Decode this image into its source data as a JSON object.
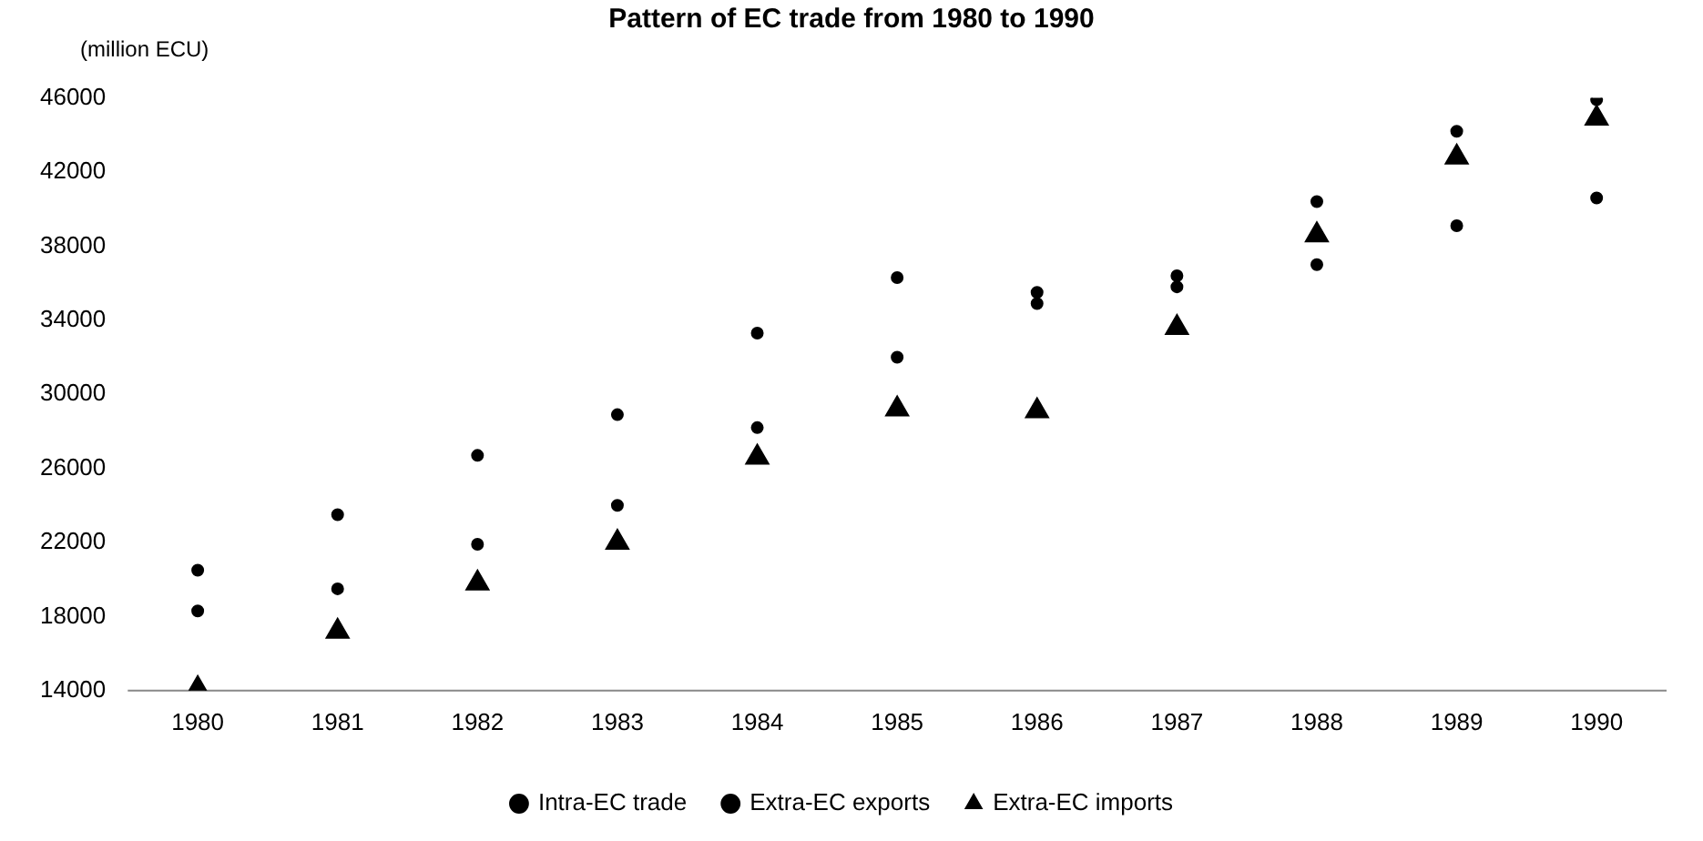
{
  "chart_data": {
    "type": "scatter",
    "title": "Pattern of EC trade from 1980 to 1990",
    "ylabel": "(million ECU)",
    "categories": [
      "1980",
      "1981",
      "1982",
      "1983",
      "1984",
      "1985",
      "1986",
      "1987",
      "1988",
      "1989",
      "1990"
    ],
    "series": [
      {
        "name": "Intra-EC trade",
        "color": "#000000",
        "marker": "circle",
        "values": [
          20500,
          23500,
          26700,
          28900,
          33300,
          36300,
          35500,
          36400,
          40400,
          44200,
          45900
        ]
      },
      {
        "name": "Extra-EC exports",
        "color": "#000000",
        "marker": "circle",
        "values": [
          18300,
          19500,
          21900,
          24000,
          28200,
          32000,
          34900,
          35800,
          37000,
          39100,
          40600
        ]
      },
      {
        "name": "Extra-EC imports",
        "color": "#000000",
        "marker": "triangle",
        "values": [
          14100,
          17200,
          19800,
          22000,
          26600,
          29200,
          29100,
          33600,
          38600,
          42800,
          44900
        ]
      }
    ],
    "ylim": [
      14000,
      46000
    ],
    "yticks": [
      14000,
      18000,
      22000,
      26000,
      30000,
      34000,
      38000,
      42000,
      46000
    ],
    "grid": false,
    "legend": "bottom"
  }
}
